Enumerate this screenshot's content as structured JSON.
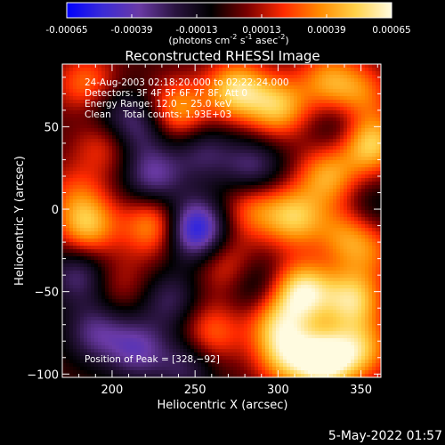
{
  "colorbar": {
    "ticks": [
      "-0.00065",
      "-0.00039",
      "-0.00013",
      "0.00013",
      "0.00039",
      "0.00065"
    ],
    "tick_values": [
      -0.00065,
      -0.00039,
      -0.00013,
      0.00013,
      0.00039,
      0.00065
    ],
    "range": [
      -0.00065,
      0.00065
    ],
    "units_base": "(photons cm",
    "units_exp1": "-2",
    "units_mid": " s",
    "units_exp2": "-1",
    "units_mid2": " asec",
    "units_exp3": "-2",
    "units_end": ")",
    "colors": [
      "#0000ff",
      "#3b2bd6",
      "#6a3aa6",
      "#2a1440",
      "#000000",
      "#7a0000",
      "#ff2a00",
      "#ff8a00",
      "#ffd24a",
      "#fffbe0"
    ]
  },
  "chart_data": {
    "type": "heatmap",
    "title": "Reconstructed RHESSI Image",
    "xlabel": "Heliocentric X (arcsec)",
    "ylabel": "Heliocentric Y (arcsec)",
    "xlim": [
      170,
      362
    ],
    "ylim": [
      -102,
      88
    ],
    "xticks": [
      200,
      250,
      300,
      350
    ],
    "yticks": [
      -100,
      -50,
      0,
      50
    ],
    "xtick_labels": [
      "200",
      "250",
      "300",
      "350"
    ],
    "ytick_labels": [
      "−100",
      "−50",
      "0",
      "50"
    ],
    "annotations": {
      "time": "24-Aug-2003 02:18:20.000 to 02:22:24.000",
      "detectors": "Detectors: 3F 4F 5F 6F 7F 8F, Att 0",
      "energy": "Energy Range: 12.0 − 25.0 keV",
      "clean": "Clean    Total counts: 1.93E+03",
      "peak": "Position of Peak = [328,−92]"
    },
    "peak": {
      "x": 328,
      "y": -92
    },
    "features": [
      {
        "x": 240,
        "y": 60,
        "v": 0.0004
      },
      {
        "x": 275,
        "y": 72,
        "v": 0.00052
      },
      {
        "x": 300,
        "y": 62,
        "v": 0.00045
      },
      {
        "x": 330,
        "y": 78,
        "v": 0.00035
      },
      {
        "x": 350,
        "y": 70,
        "v": 0.0003
      },
      {
        "x": 355,
        "y": 40,
        "v": 0.00055
      },
      {
        "x": 330,
        "y": 20,
        "v": 0.0004
      },
      {
        "x": 185,
        "y": 75,
        "v": 0.00035
      },
      {
        "x": 195,
        "y": 40,
        "v": 0.00025
      },
      {
        "x": 178,
        "y": 10,
        "v": 0.0002
      },
      {
        "x": 185,
        "y": -10,
        "v": 0.00045
      },
      {
        "x": 225,
        "y": -10,
        "v": 0.0004
      },
      {
        "x": 285,
        "y": 0,
        "v": 0.0003
      },
      {
        "x": 310,
        "y": -5,
        "v": 0.00045
      },
      {
        "x": 340,
        "y": -15,
        "v": 0.0003
      },
      {
        "x": 355,
        "y": -25,
        "v": 0.00025
      },
      {
        "x": 270,
        "y": -35,
        "v": 0.00025
      },
      {
        "x": 205,
        "y": -45,
        "v": 0.00015
      },
      {
        "x": 315,
        "y": -50,
        "v": 0.00058
      },
      {
        "x": 345,
        "y": -55,
        "v": 0.0005
      },
      {
        "x": 300,
        "y": -70,
        "v": 0.0004
      },
      {
        "x": 260,
        "y": -75,
        "v": 0.0003
      },
      {
        "x": 328,
        "y": -92,
        "v": 0.00065
      },
      {
        "x": 305,
        "y": -90,
        "v": 0.0004
      },
      {
        "x": 350,
        "y": -85,
        "v": 0.0004
      },
      {
        "x": 195,
        "y": 60,
        "v": -0.0002
      },
      {
        "x": 215,
        "y": 50,
        "v": -0.0003
      },
      {
        "x": 225,
        "y": 20,
        "v": -0.00035
      },
      {
        "x": 255,
        "y": 35,
        "v": -0.00025
      },
      {
        "x": 285,
        "y": 25,
        "v": -0.0003
      },
      {
        "x": 340,
        "y": 50,
        "v": -0.0002
      },
      {
        "x": 250,
        "y": -12,
        "v": -0.0006
      },
      {
        "x": 180,
        "y": -40,
        "v": -0.0003
      },
      {
        "x": 190,
        "y": -75,
        "v": -0.0003
      },
      {
        "x": 215,
        "y": -85,
        "v": -0.00035
      },
      {
        "x": 235,
        "y": -55,
        "v": -0.00025
      },
      {
        "x": 285,
        "y": -45,
        "v": -0.0002
      },
      {
        "x": 245,
        "y": -95,
        "v": -0.00025
      },
      {
        "x": 355,
        "y": 0,
        "v": -0.00015
      }
    ]
  },
  "footer": {
    "date": "5-May-2022 01:57"
  }
}
